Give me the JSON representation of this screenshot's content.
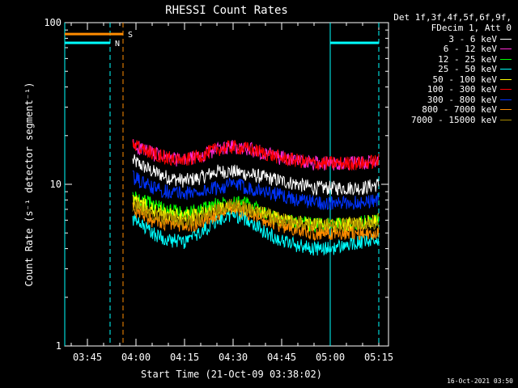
{
  "chart_data": {
    "type": "line",
    "title": "RHESSI Count Rates",
    "xlabel": "Start Time (21-Oct-09 03:38:02)",
    "ylabel": "Count Rate (s⁻¹ detector segment⁻¹)",
    "y_scale": "log",
    "ylim": [
      1,
      100
    ],
    "y_ticks": [
      1,
      10,
      100
    ],
    "y_tick_labels": [
      "1",
      "10",
      "100"
    ],
    "xlim": [
      "03:38",
      "05:18"
    ],
    "x_ticks": [
      "03:45",
      "04:00",
      "04:15",
      "04:30",
      "04:45",
      "05:00",
      "05:15"
    ],
    "grid": false,
    "legend_position": "right",
    "legend_header": [
      "Det 1f,3f,4f,5f,6f,9f,",
      "FDecim 1, Att 0"
    ],
    "x": [
      "03:59",
      "04:05",
      "04:10",
      "04:15",
      "04:20",
      "04:25",
      "04:30",
      "04:35",
      "04:40",
      "04:45",
      "04:50",
      "04:55",
      "05:00",
      "05:05",
      "05:10",
      "05:15"
    ],
    "series": [
      {
        "name": "3 - 6 keV",
        "color": "#ffffff",
        "values": [
          14,
          12,
          11,
          10.5,
          11,
          12,
          12,
          11.5,
          11,
          10.5,
          10,
          9.5,
          9.5,
          9.5,
          9.5,
          10
        ]
      },
      {
        "name": "6 - 12 keV",
        "color": "#ff2bd5",
        "values": [
          17.5,
          15.5,
          14.5,
          14,
          15,
          16.5,
          17,
          16.5,
          15.5,
          14.5,
          14,
          13.5,
          13.5,
          13.5,
          13.5,
          14
        ]
      },
      {
        "name": "12 - 25 keV",
        "color": "#00ff00",
        "values": [
          8.5,
          7.5,
          7,
          6.5,
          7,
          7.5,
          8,
          7.5,
          6.5,
          6,
          5.8,
          5.6,
          5.6,
          5.6,
          5.8,
          6
        ]
      },
      {
        "name": "25 - 50 keV",
        "color": "#00ffff",
        "values": [
          6,
          5,
          4.5,
          4.4,
          5,
          6,
          6.5,
          6,
          5,
          4.5,
          4.2,
          4,
          4,
          4.2,
          4.4,
          4.5
        ]
      },
      {
        "name": "50 - 100 keV",
        "color": "#ffff00",
        "values": [
          8,
          7,
          6.5,
          6.3,
          6.5,
          7,
          7.5,
          7,
          6.5,
          6,
          5.8,
          5.6,
          5.6,
          5.6,
          5.8,
          6
        ]
      },
      {
        "name": "100 - 300 keV",
        "color": "#ff0000",
        "values": [
          17.5,
          15.5,
          14.5,
          14,
          15,
          16.5,
          17,
          16.5,
          15.5,
          14.5,
          14,
          13.5,
          13.5,
          13.5,
          13.5,
          14
        ]
      },
      {
        "name": "300 - 800 keV",
        "color": "#0033ff",
        "values": [
          11,
          9.5,
          9,
          8.8,
          9,
          9.5,
          10,
          9.5,
          9,
          8.5,
          8,
          7.8,
          7.6,
          7.6,
          7.8,
          8
        ]
      },
      {
        "name": "800 - 7000 keV",
        "color": "#ff8c00",
        "values": [
          7,
          6,
          5.7,
          5.5,
          5.8,
          6.5,
          7,
          6.5,
          6,
          5.5,
          5.2,
          5,
          5,
          5,
          5,
          5
        ]
      },
      {
        "name": "7000 - 15000 keV",
        "color": "#a88a00",
        "values": [
          7.5,
          6.5,
          6,
          5.8,
          6.2,
          7,
          7.5,
          7,
          6.5,
          6,
          5.8,
          5.6,
          5.6,
          5.6,
          5.6,
          5.8
        ]
      }
    ],
    "annotations": {
      "spacecraft_night": {
        "label": "N",
        "color": "#00ffff",
        "intervals": [
          [
            "03:38",
            "03:52"
          ],
          [
            "05:00",
            "05:15"
          ]
        ],
        "level": 75
      },
      "saa": {
        "label": "S",
        "color": "#ff8c00",
        "intervals": [
          [
            "03:38",
            "03:56"
          ]
        ],
        "level": 85
      },
      "lines": [
        {
          "time": "03:38",
          "color": "#00ffff",
          "style": "solid"
        },
        {
          "time": "03:52",
          "color": "#00ffff",
          "style": "dashed"
        },
        {
          "time": "03:56",
          "color": "#ff8c00",
          "style": "dashed"
        },
        {
          "time": "05:00",
          "color": "#00ffff",
          "style": "solid"
        },
        {
          "time": "05:15",
          "color": "#00ffff",
          "style": "dashed"
        }
      ]
    }
  },
  "footer_stamp": "16-Oct-2021 03:50"
}
